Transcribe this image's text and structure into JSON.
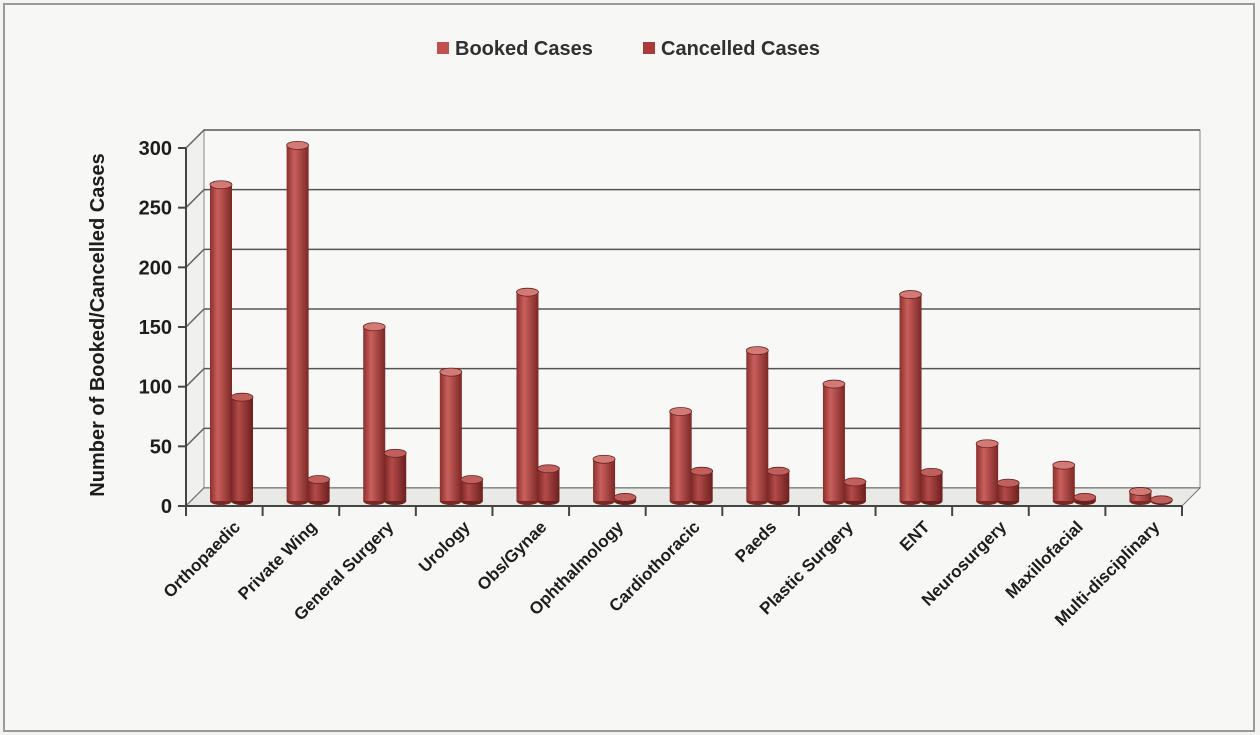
{
  "chart_data": {
    "type": "bar",
    "title": "",
    "xlabel": "",
    "ylabel": "Number of Booked/Cancelled Cases",
    "ylim": [
      0,
      300
    ],
    "yticks": [
      0,
      50,
      100,
      150,
      200,
      250,
      300
    ],
    "grid": true,
    "legend_position": "top",
    "categories": [
      "Orthopaedic",
      "Private Wing",
      "General Surgery",
      "Urology",
      "Obs/Gynae",
      "Ophthalmology",
      "Cardiothoracic",
      "Paeds",
      "Plastic Surgery",
      "ENT",
      "Neurosurgery",
      "Maxillofacial",
      "Multi-disciplinary"
    ],
    "series": [
      {
        "name": "Booked Cases",
        "color": "#c0504d",
        "values": [
          265,
          298,
          146,
          108,
          175,
          35,
          75,
          126,
          98,
          173,
          48,
          30,
          8
        ]
      },
      {
        "name": "Cancelled Cases",
        "color": "#a83a38",
        "values": [
          87,
          18,
          40,
          18,
          27,
          3,
          25,
          25,
          16,
          24,
          15,
          3,
          1
        ]
      }
    ]
  }
}
